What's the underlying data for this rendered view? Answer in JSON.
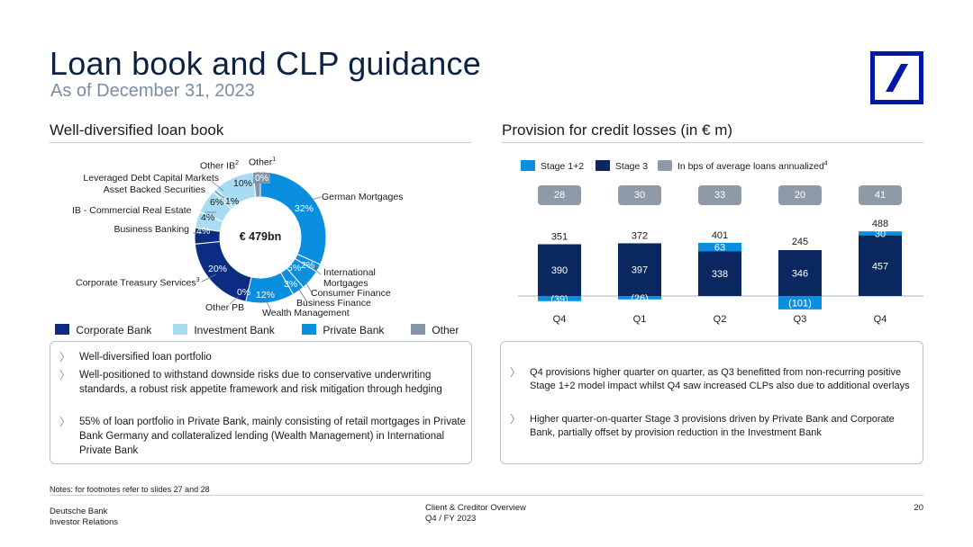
{
  "header": {
    "title": "Loan book and CLP guidance",
    "subtitle": "As of December 31, 2023"
  },
  "colors": {
    "corporate_bank": "#0c2c84",
    "investment_bank": "#a8dcf2",
    "private_bank": "#0a8fe0",
    "other": "#8596a9",
    "stage12": "#0a8fe0",
    "stage3": "#0a2760",
    "bps_pill": "#8e9aa8"
  },
  "left": {
    "section_title": "Well-diversified loan book",
    "center_label": "€ 479bn",
    "legend": [
      "Corporate Bank",
      "Investment Bank",
      "Private Bank",
      "Other"
    ],
    "bullets": [
      "Well-diversified loan portfolio",
      "Well-positioned to withstand downside risks due to conservative underwriting standards, a robust risk appetite framework and risk mitigation through hedging",
      "55% of loan portfolio in Private Bank, mainly consisting of retail mortgages in Private Bank Germany and collateralized lending (Wealth Management) in International Private Bank"
    ]
  },
  "right": {
    "section_title": "Provision for credit losses (in € m)",
    "legend": [
      "Stage 1+2",
      "Stage 3",
      "In bps of average loans annualized"
    ],
    "legend_sup": "4",
    "bullets": [
      "Q4 provisions higher quarter on quarter, as Q3 benefitted from non-recurring positive Stage 1+2 model impact whilst Q4 saw increased CLPs also due to additional overlays",
      "Higher quarter-on-quarter Stage 3 provisions driven by Private Bank and Corporate Bank, partially offset by provision reduction in the Investment Bank"
    ]
  },
  "chart_data": [
    {
      "type": "pie",
      "title": "Well-diversified loan book",
      "center_label": "€ 479bn",
      "slices": [
        {
          "label": "German Mortgages",
          "value": 32,
          "value_label": "32%",
          "group": "Private Bank"
        },
        {
          "label": "International Mortgages",
          "value": 2,
          "value_label": "2%",
          "group": "Private Bank"
        },
        {
          "label": "Consumer Finance",
          "value": 5,
          "value_label": "5%",
          "group": "Private Bank"
        },
        {
          "label": "Business Finance",
          "value": 3,
          "value_label": "3%",
          "group": "Private Bank"
        },
        {
          "label": "Wealth Management",
          "value": 12,
          "value_label": "12%",
          "group": "Private Bank"
        },
        {
          "label": "Other PB",
          "value": 0,
          "value_label": "0%",
          "group": "Private Bank"
        },
        {
          "label": "Corporate Treasury Services",
          "label_sup": "3",
          "value": 20,
          "value_label": "20%",
          "group": "Corporate Bank"
        },
        {
          "label": "Business Banking",
          "value": 4,
          "value_label": "4%",
          "group": "Corporate Bank"
        },
        {
          "label": "IB - Commercial Real Estate",
          "value": 4,
          "value_label": "4%",
          "group": "Investment Bank"
        },
        {
          "label": "Asset Backed Securities",
          "value": 6,
          "value_label": "6%",
          "group": "Investment Bank"
        },
        {
          "label": "Leveraged Debt Capital Markets",
          "value": 1,
          "value_label": "1%",
          "group": "Investment Bank"
        },
        {
          "label": "Other IB",
          "label_sup": "2",
          "value": 10,
          "value_label": "10%",
          "group": "Investment Bank"
        },
        {
          "label": "Other",
          "label_sup": "1",
          "value": 0,
          "value_label": "0%",
          "group": "Other"
        }
      ]
    },
    {
      "type": "bar",
      "title": "Provision for credit losses (in € m)",
      "categories": [
        "Q4",
        "Q1",
        "Q2",
        "Q3",
        "Q4"
      ],
      "series": [
        {
          "name": "Stage 1+2",
          "values": [
            -39,
            -26,
            63,
            -101,
            30
          ],
          "value_labels": [
            "(39)",
            "(26)",
            "63",
            "(101)",
            "30"
          ]
        },
        {
          "name": "Stage 3",
          "values": [
            390,
            397,
            338,
            346,
            457
          ],
          "value_labels": [
            "390",
            "397",
            "338",
            "346",
            "457"
          ]
        }
      ],
      "totals": [
        351,
        372,
        401,
        245,
        488
      ],
      "bps": [
        28,
        30,
        33,
        20,
        41
      ],
      "stacked": true
    }
  ],
  "footer": {
    "notes": "Notes: for footnotes refer to slides 27 and 28",
    "org_line1": "Deutsche Bank",
    "org_line2": "Investor Relations",
    "doc_line1": "Client & Creditor Overview",
    "doc_line2": "Q4 / FY 2023",
    "page": "20"
  }
}
